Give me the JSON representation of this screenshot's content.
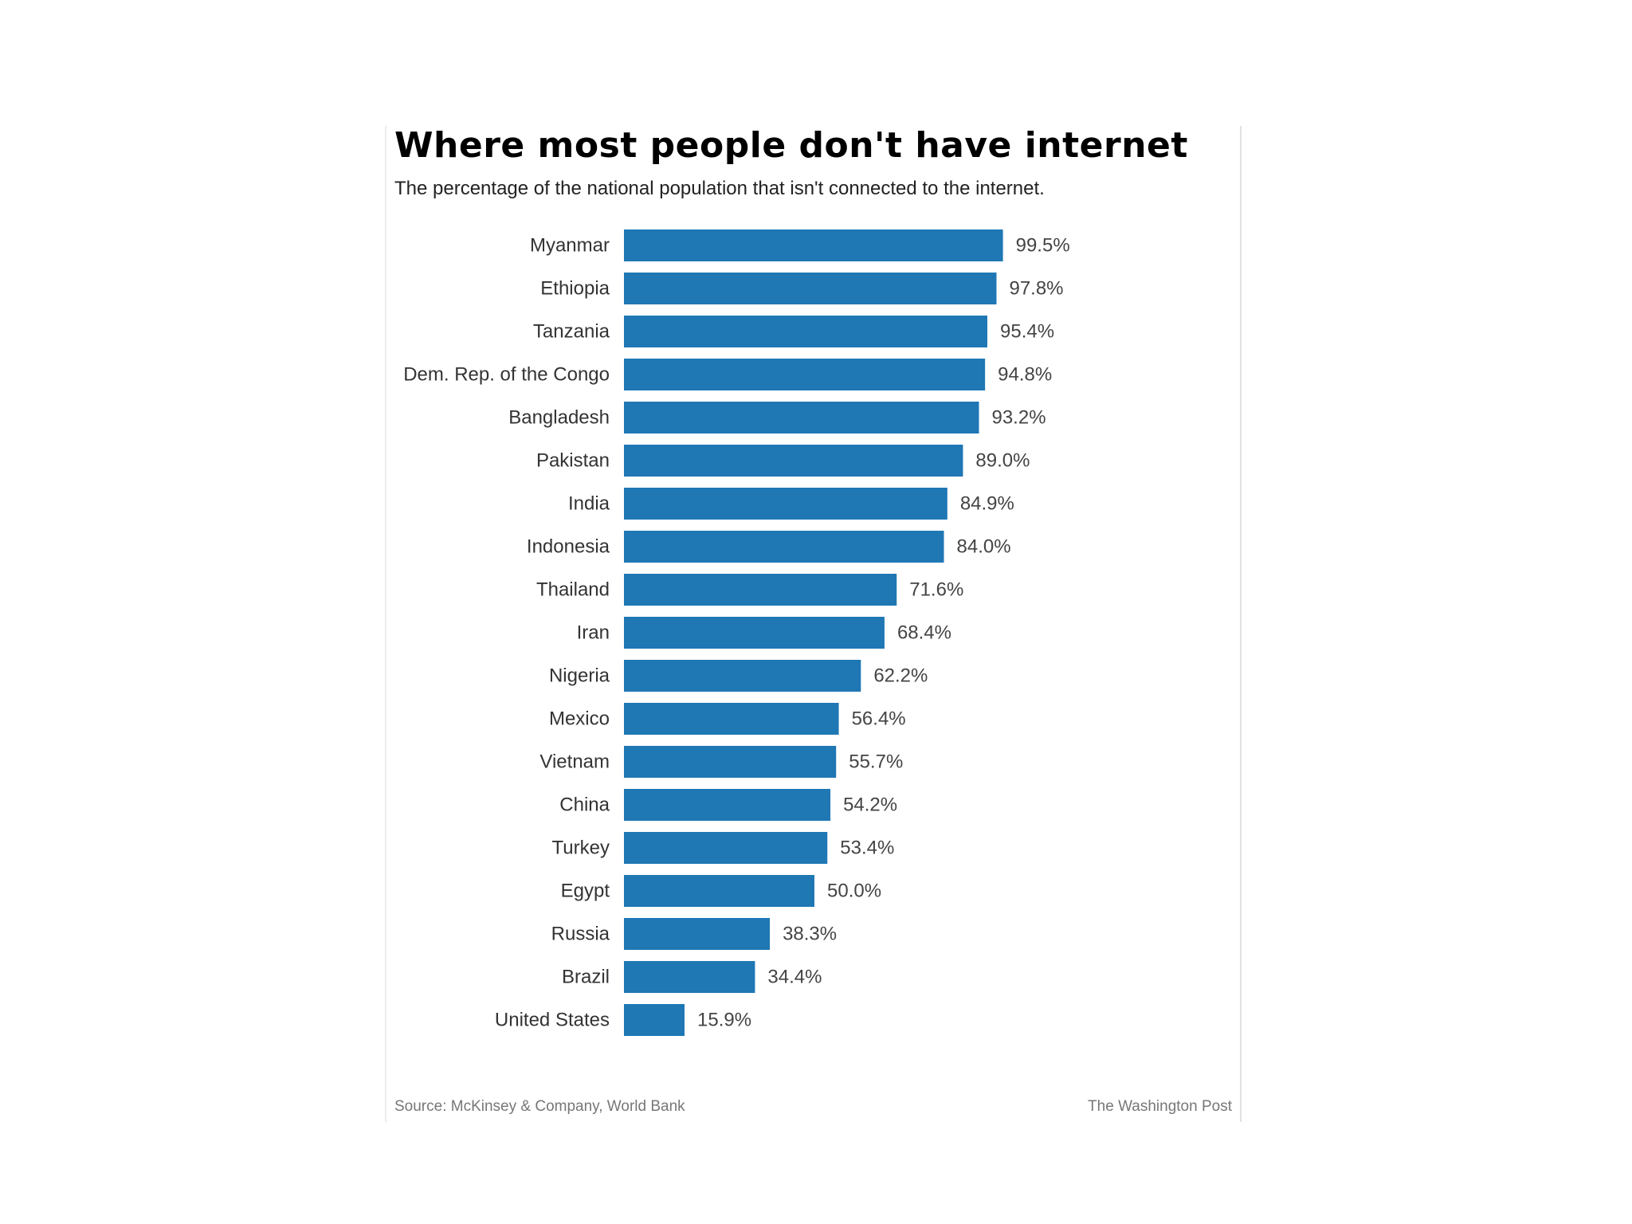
{
  "chart_data": {
    "type": "bar",
    "orientation": "horizontal",
    "title": "Where most people don't have internet",
    "subtitle": "The percentage of the national population that isn't connected to the internet.",
    "categories": [
      "Myanmar",
      "Ethiopia",
      "Tanzania",
      "Dem. Rep. of the Congo",
      "Bangladesh",
      "Pakistan",
      "India",
      "Indonesia",
      "Thailand",
      "Iran",
      "Nigeria",
      "Mexico",
      "Vietnam",
      "China",
      "Turkey",
      "Egypt",
      "Russia",
      "Brazil",
      "United States"
    ],
    "values": [
      99.5,
      97.8,
      95.4,
      94.8,
      93.2,
      89.0,
      84.9,
      84.0,
      71.6,
      68.4,
      62.2,
      56.4,
      55.7,
      54.2,
      53.4,
      50.0,
      38.3,
      34.4,
      15.9
    ],
    "value_labels": [
      "99.5%",
      "97.8%",
      "95.4%",
      "94.8%",
      "93.2%",
      "89.0%",
      "84.9%",
      "84.0%",
      "71.6%",
      "68.4%",
      "62.2%",
      "56.4%",
      "55.7%",
      "54.2%",
      "53.4%",
      "50.0%",
      "38.3%",
      "34.4%",
      "15.9%"
    ],
    "xlim": [
      0,
      100
    ],
    "grid": false,
    "bar_color": "#1f77b4",
    "source": "Source: McKinsey & Company, World Bank",
    "credit": "The Washington Post"
  }
}
